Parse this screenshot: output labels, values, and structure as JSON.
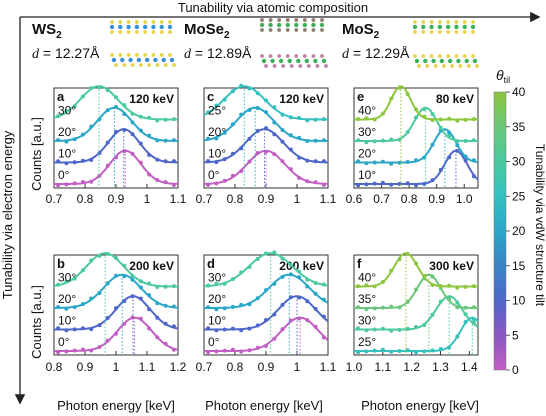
{
  "figure": {
    "top_axis_label": "Tunability via atomic composition",
    "left_axis_label": "Tunability via electron energy",
    "right_axis_label": "Tunability via vdW structure tilt",
    "ylabel": "Counts [a.u.]",
    "xlabel": "Photon energy [keV]",
    "materials": [
      {
        "name": "WS",
        "sub": "2",
        "d_label": "d",
        "d_value": " = 12.27Å"
      },
      {
        "name": "MoSe",
        "sub": "2",
        "d_label": "d",
        "d_value": " = 12.89Å"
      },
      {
        "name": "MoS",
        "sub": "2",
        "d_label": "d",
        "d_value": " = 12.29Å"
      }
    ],
    "colorbar": {
      "title_main": "θ",
      "title_sub": "til",
      "ticks": [
        "0",
        "5",
        "10",
        "15",
        "20",
        "25",
        "30",
        "35",
        "40"
      ],
      "range": [
        0,
        40
      ],
      "colors": [
        "#c25fc2",
        "#8a57c2",
        "#4f66c9",
        "#3a83c4",
        "#2aa6c8",
        "#34c1c0",
        "#4bc9a0",
        "#6cc67a",
        "#8dc63f"
      ]
    }
  },
  "chart_data": [
    {
      "type": "line",
      "panel": "a",
      "energy": "120 keV",
      "xlim": [
        0.7,
        1.1
      ],
      "xticks": [
        "0.7",
        "0.8",
        "0.9",
        "1",
        "1.1"
      ],
      "series": [
        {
          "name": "0°",
          "angle": 0,
          "peak": 0.93,
          "width": 0.05
        },
        {
          "name": "10°",
          "angle": 10,
          "peak": 0.925,
          "width": 0.05
        },
        {
          "name": "20°",
          "angle": 20,
          "peak": 0.895,
          "width": 0.055
        },
        {
          "name": "30°",
          "angle": 30,
          "peak": 0.845,
          "width": 0.06
        }
      ]
    },
    {
      "type": "line",
      "panel": "c",
      "energy": "120 keV",
      "xlim": [
        0.7,
        1.1
      ],
      "xticks": [
        "0.7",
        "0.8",
        "0.9",
        "1",
        "1.1"
      ],
      "series": [
        {
          "name": "0°",
          "angle": 0,
          "peak": 0.9,
          "width": 0.06
        },
        {
          "name": "10°",
          "angle": 10,
          "peak": 0.895,
          "width": 0.06
        },
        {
          "name": "20°",
          "angle": 20,
          "peak": 0.865,
          "width": 0.06
        },
        {
          "name": "25°",
          "angle": 25,
          "peak": 0.83,
          "width": 0.065
        }
      ]
    },
    {
      "type": "line",
      "panel": "e",
      "energy": "80 keV",
      "xlim": [
        0.6,
        1.05
      ],
      "xticks": [
        "0.6",
        "0.7",
        "0.8",
        "0.9",
        "1.0"
      ],
      "series": [
        {
          "name": "10°",
          "angle": 10,
          "peak": 0.97,
          "width": 0.04
        },
        {
          "name": "20°",
          "angle": 20,
          "peak": 0.93,
          "width": 0.04
        },
        {
          "name": "30°",
          "angle": 30,
          "peak": 0.86,
          "width": 0.04
        },
        {
          "name": "40°",
          "angle": 40,
          "peak": 0.77,
          "width": 0.035
        }
      ]
    },
    {
      "type": "line",
      "panel": "b",
      "energy": "200 keV",
      "xlim": [
        0.8,
        1.2
      ],
      "xticks": [
        "0.8",
        "0.9",
        "1",
        "1.1",
        "1.2"
      ],
      "series": [
        {
          "name": "0°",
          "angle": 0,
          "peak": 1.06,
          "width": 0.055
        },
        {
          "name": "10°",
          "angle": 10,
          "peak": 1.055,
          "width": 0.055
        },
        {
          "name": "20°",
          "angle": 20,
          "peak": 1.02,
          "width": 0.06
        },
        {
          "name": "30°",
          "angle": 30,
          "peak": 0.965,
          "width": 0.06
        }
      ]
    },
    {
      "type": "line",
      "panel": "d",
      "energy": "200 keV",
      "xlim": [
        0.7,
        1.1
      ],
      "xticks": [
        "0.7",
        "0.8",
        "0.9",
        "1",
        "1.1"
      ],
      "series": [
        {
          "name": "0°",
          "angle": 0,
          "peak": 1.01,
          "width": 0.06
        },
        {
          "name": "10°",
          "angle": 10,
          "peak": 1.0,
          "width": 0.06
        },
        {
          "name": "20°",
          "angle": 20,
          "peak": 0.975,
          "width": 0.065
        },
        {
          "name": "30°",
          "angle": 30,
          "peak": 0.915,
          "width": 0.07
        }
      ]
    },
    {
      "type": "line",
      "panel": "f",
      "energy": "300 keV",
      "xlim": [
        1.0,
        1.43
      ],
      "xticks": [
        "1.0",
        "1.1",
        "1.2",
        "1.3",
        "1.4"
      ],
      "series": [
        {
          "name": "25°",
          "angle": 25,
          "peak": 1.41,
          "width": 0.04
        },
        {
          "name": "30°",
          "angle": 30,
          "peak": 1.33,
          "width": 0.045
        },
        {
          "name": "35°",
          "angle": 35,
          "peak": 1.26,
          "width": 0.04
        },
        {
          "name": "40°",
          "angle": 40,
          "peak": 1.18,
          "width": 0.04
        }
      ]
    }
  ]
}
